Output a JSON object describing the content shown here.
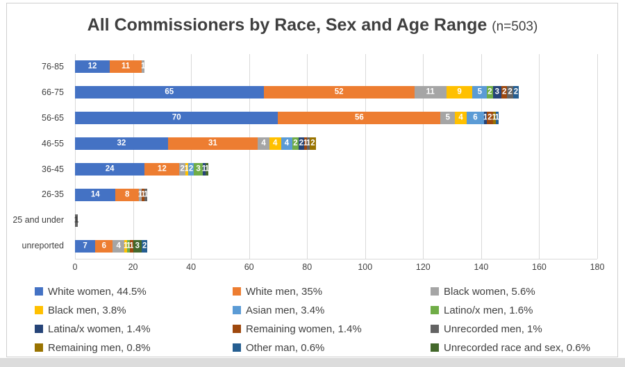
{
  "title": {
    "main": "All Commissioners by Race, Sex and Age Range",
    "suffix": "(n=503)"
  },
  "chart_data": {
    "type": "bar",
    "orientation": "horizontal",
    "stacked": true,
    "title": "All Commissioners by Race, Sex and Age Range (n=503)",
    "n_total": 503,
    "xlim": [
      0,
      180
    ],
    "x_ticks": [
      "0",
      "20",
      "40",
      "60",
      "80",
      "100",
      "120",
      "140",
      "160",
      "180"
    ],
    "grid": true,
    "legend_position": "bottom",
    "categories": [
      "76-85",
      "66-75",
      "56-65",
      "46-55",
      "36-45",
      "26-35",
      "25 and under",
      "unreported"
    ],
    "series": [
      {
        "name": "White women",
        "percent": "44.5%",
        "color": "#4472C4"
      },
      {
        "name": "White men",
        "percent": "35%",
        "color": "#ED7D31"
      },
      {
        "name": "Black women",
        "percent": "5.6%",
        "color": "#A5A5A5"
      },
      {
        "name": "Black men",
        "percent": "3.8%",
        "color": "#FFC000"
      },
      {
        "name": "Asian men",
        "percent": "3.4%",
        "color": "#5B9BD5"
      },
      {
        "name": "Latino/x men",
        "percent": "1.6%",
        "color": "#70AD47"
      },
      {
        "name": "Latina/x women",
        "percent": "1.4%",
        "color": "#264478"
      },
      {
        "name": "Remaining women",
        "percent": "1.4%",
        "color": "#9E480E"
      },
      {
        "name": "Unrecorded men",
        "percent": "1%",
        "color": "#636363"
      },
      {
        "name": "Remaining men",
        "percent": "0.8%",
        "color": "#997300"
      },
      {
        "name": "Other man",
        "percent": "0.6%",
        "color": "#255E91"
      },
      {
        "name": "Unrecorded race and sex",
        "percent": "0.6%",
        "color": "#43682B"
      }
    ],
    "rows": [
      {
        "category": "76-85",
        "segments": [
          {
            "series": "White women",
            "value": 12
          },
          {
            "series": "White men",
            "value": 11
          },
          {
            "series": "Black women",
            "value": 1
          }
        ]
      },
      {
        "category": "66-75",
        "segments": [
          {
            "series": "White women",
            "value": 65
          },
          {
            "series": "White men",
            "value": 52
          },
          {
            "series": "Black women",
            "value": 11
          },
          {
            "series": "Black men",
            "value": 9
          },
          {
            "series": "Asian men",
            "value": 5
          },
          {
            "series": "Latino/x men",
            "value": 2
          },
          {
            "series": "Latina/x women",
            "value": 3
          },
          {
            "series": "Remaining women",
            "value": 2
          },
          {
            "series": "Unrecorded men",
            "value": 2
          },
          {
            "series": "Other man",
            "value": 2
          }
        ]
      },
      {
        "category": "56-65",
        "segments": [
          {
            "series": "White women",
            "value": 70
          },
          {
            "series": "White men",
            "value": 56
          },
          {
            "series": "Black women",
            "value": 5
          },
          {
            "series": "Black men",
            "value": 4
          },
          {
            "series": "Asian men",
            "value": 6
          },
          {
            "series": "Latina/x women",
            "value": 1
          },
          {
            "series": "Remaining women",
            "value": 2
          },
          {
            "series": "Remaining men",
            "value": 1
          },
          {
            "series": "Other man",
            "value": 1
          }
        ]
      },
      {
        "category": "46-55",
        "segments": [
          {
            "series": "White women",
            "value": 32
          },
          {
            "series": "White men",
            "value": 31
          },
          {
            "series": "Black women",
            "value": 4
          },
          {
            "series": "Black men",
            "value": 4
          },
          {
            "series": "Asian men",
            "value": 4
          },
          {
            "series": "Latino/x men",
            "value": 2
          },
          {
            "series": "Latina/x women",
            "value": 2
          },
          {
            "series": "Remaining women",
            "value": 1
          },
          {
            "series": "Unrecorded men",
            "value": 1
          },
          {
            "series": "Remaining men",
            "value": 2
          }
        ]
      },
      {
        "category": "36-45",
        "segments": [
          {
            "series": "White women",
            "value": 24
          },
          {
            "series": "White men",
            "value": 12
          },
          {
            "series": "Black women",
            "value": 2
          },
          {
            "series": "Black men",
            "value": 1
          },
          {
            "series": "Asian men",
            "value": 2
          },
          {
            "series": "Latino/x men",
            "value": 3
          },
          {
            "series": "Latina/x women",
            "value": 1
          },
          {
            "series": "Unrecorded race and sex",
            "value": 1
          }
        ]
      },
      {
        "category": "26-35",
        "segments": [
          {
            "series": "White women",
            "value": 14
          },
          {
            "series": "White men",
            "value": 8
          },
          {
            "series": "Black women",
            "value": 1
          },
          {
            "series": "Remaining women",
            "value": 1
          },
          {
            "series": "Unrecorded men",
            "value": 1
          }
        ]
      },
      {
        "category": "25 and under",
        "segments": [
          {
            "series": "Unrecorded men",
            "value": 1,
            "label_dark": true
          }
        ]
      },
      {
        "category": "unreported",
        "segments": [
          {
            "series": "White women",
            "value": 7
          },
          {
            "series": "White men",
            "value": 6
          },
          {
            "series": "Black women",
            "value": 4
          },
          {
            "series": "Black men",
            "value": 1
          },
          {
            "series": "Latino/x men",
            "value": 1
          },
          {
            "series": "Remaining women",
            "value": 1
          },
          {
            "series": "Unrecorded race and sex",
            "value": 3
          },
          {
            "series": "Other man",
            "value": 2
          }
        ]
      }
    ]
  }
}
